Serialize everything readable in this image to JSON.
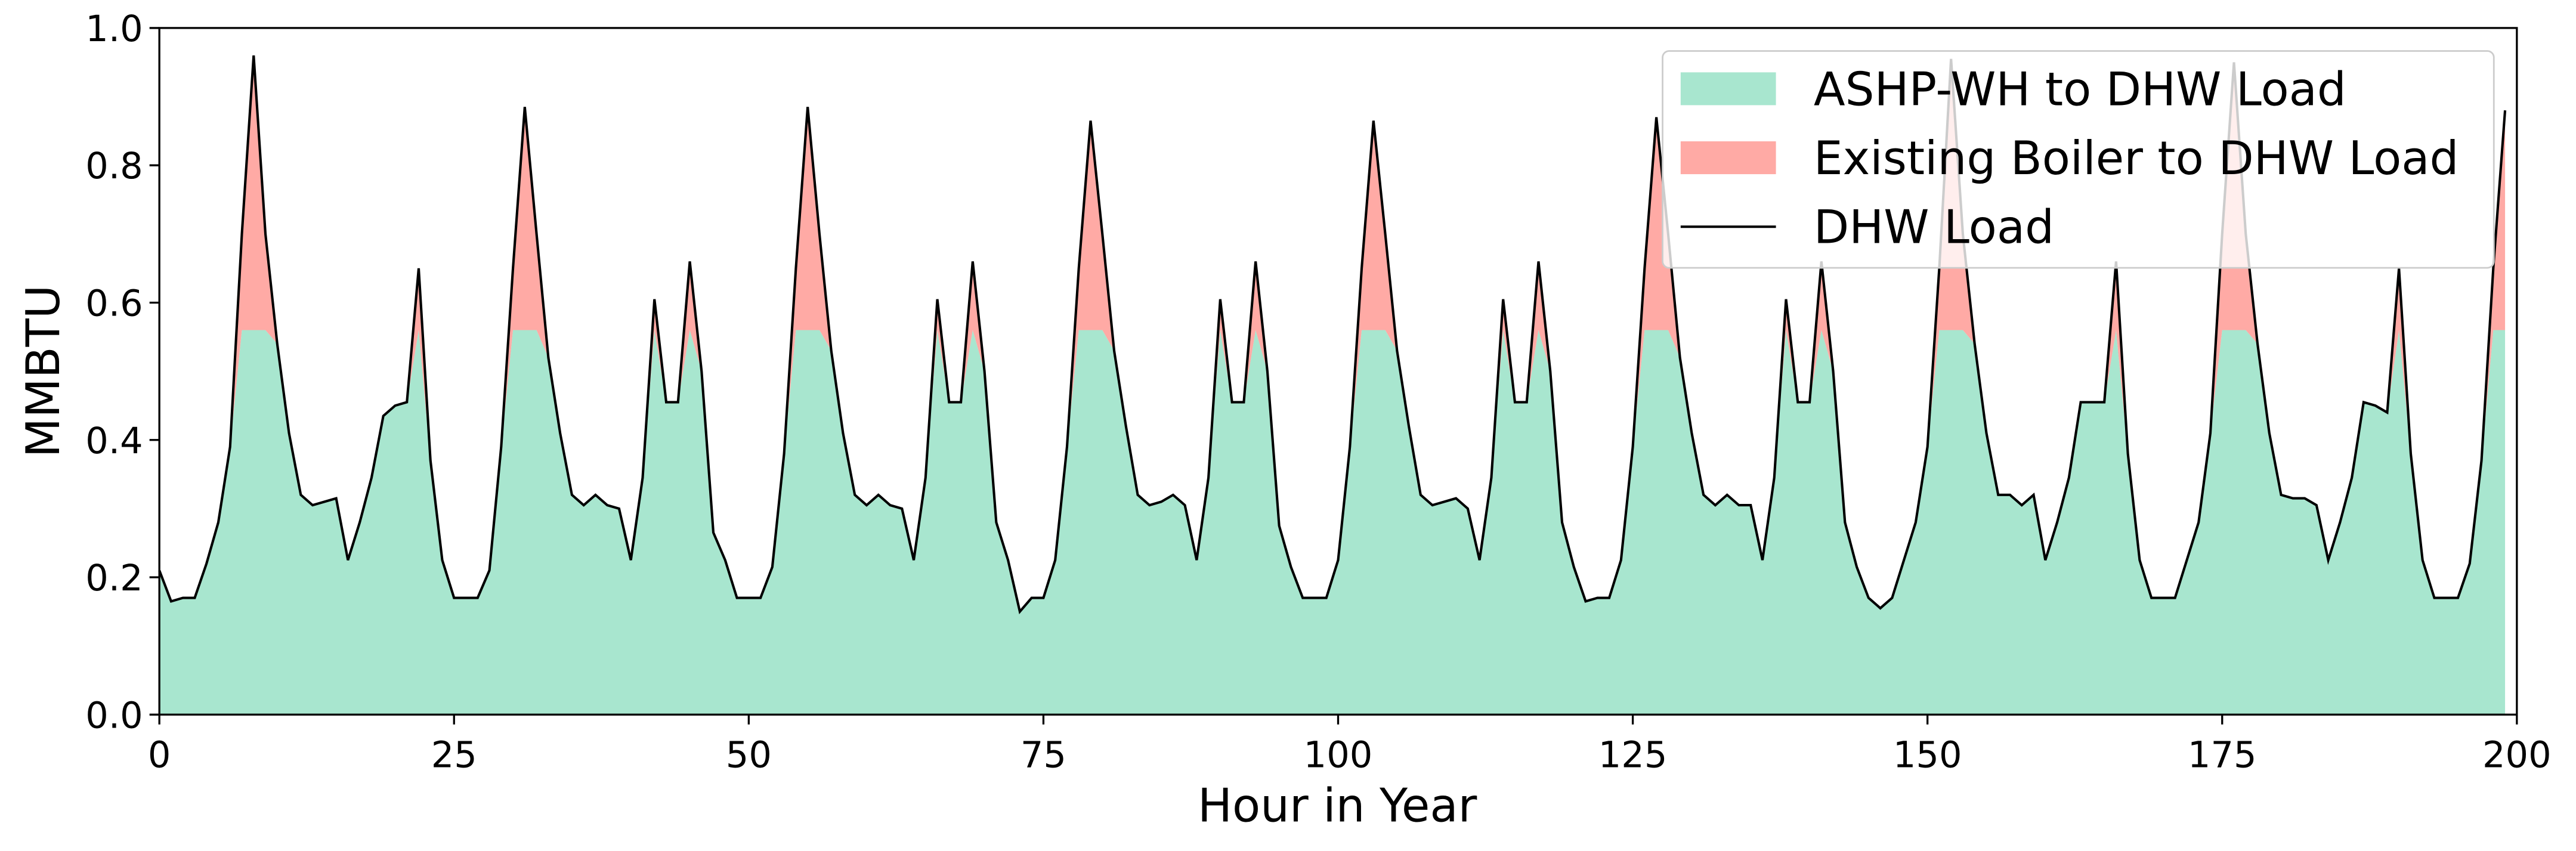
{
  "chart_data": {
    "type": "stacked_area",
    "xlabel": "Hour in Year",
    "ylabel": "MMBTU",
    "x": [
      0,
      1,
      2,
      3,
      4,
      5,
      6,
      7,
      8,
      9,
      10,
      11,
      12,
      13,
      14,
      15,
      16,
      17,
      18,
      19,
      20,
      21,
      22,
      23,
      24,
      25,
      26,
      27,
      28,
      29,
      30,
      31,
      32,
      33,
      34,
      35,
      36,
      37,
      38,
      39,
      40,
      41,
      42,
      43,
      44,
      45,
      46,
      47,
      48,
      49,
      50,
      51,
      52,
      53,
      54,
      55,
      56,
      57,
      58,
      59,
      60,
      61,
      62,
      63,
      64,
      65,
      66,
      67,
      68,
      69,
      70,
      71,
      72,
      73,
      74,
      75,
      76,
      77,
      78,
      79,
      80,
      81,
      82,
      83,
      84,
      85,
      86,
      87,
      88,
      89,
      90,
      91,
      92,
      93,
      94,
      95,
      96,
      97,
      98,
      99,
      100,
      101,
      102,
      103,
      104,
      105,
      106,
      107,
      108,
      109,
      110,
      111,
      112,
      113,
      114,
      115,
      116,
      117,
      118,
      119,
      120,
      121,
      122,
      123,
      124,
      125,
      126,
      127,
      128,
      129,
      130,
      131,
      132,
      133,
      134,
      135,
      136,
      137,
      138,
      139,
      140,
      141,
      142,
      143,
      144,
      145,
      146,
      147,
      148,
      149,
      150,
      151,
      152,
      153,
      154,
      155,
      156,
      157,
      158,
      159,
      160,
      161,
      162,
      163,
      164,
      165,
      166,
      167,
      168,
      169,
      170,
      171,
      172,
      173,
      174,
      175,
      176,
      177,
      178,
      179,
      180,
      181,
      182,
      183,
      184,
      185,
      186,
      187,
      188,
      189,
      190,
      191,
      192,
      193,
      194,
      195,
      196,
      197,
      198,
      199
    ],
    "series": [
      {
        "name": "ASHP-WH to DHW Load",
        "color": "#a8e6cf",
        "kind": "area",
        "values": [
          0.21,
          0.165,
          0.17,
          0.17,
          0.22,
          0.28,
          0.39,
          0.56,
          0.56,
          0.56,
          0.54,
          0.41,
          0.32,
          0.305,
          0.31,
          0.315,
          0.225,
          0.28,
          0.345,
          0.435,
          0.45,
          0.455,
          0.56,
          0.37,
          0.225,
          0.17,
          0.17,
          0.17,
          0.21,
          0.39,
          0.56,
          0.56,
          0.56,
          0.52,
          0.41,
          0.32,
          0.305,
          0.32,
          0.305,
          0.3,
          0.225,
          0.345,
          0.56,
          0.455,
          0.455,
          0.56,
          0.5,
          0.265,
          0.225,
          0.17,
          0.17,
          0.17,
          0.215,
          0.38,
          0.56,
          0.56,
          0.56,
          0.53,
          0.41,
          0.32,
          0.305,
          0.32,
          0.305,
          0.3,
          0.225,
          0.345,
          0.56,
          0.455,
          0.455,
          0.56,
          0.5,
          0.28,
          0.225,
          0.15,
          0.17,
          0.17,
          0.225,
          0.39,
          0.56,
          0.56,
          0.56,
          0.53,
          0.42,
          0.32,
          0.305,
          0.31,
          0.32,
          0.305,
          0.225,
          0.345,
          0.56,
          0.455,
          0.455,
          0.56,
          0.5,
          0.275,
          0.215,
          0.17,
          0.17,
          0.17,
          0.225,
          0.39,
          0.56,
          0.56,
          0.56,
          0.53,
          0.42,
          0.32,
          0.305,
          0.31,
          0.315,
          0.3,
          0.225,
          0.345,
          0.56,
          0.455,
          0.455,
          0.56,
          0.5,
          0.28,
          0.215,
          0.165,
          0.17,
          0.17,
          0.225,
          0.39,
          0.56,
          0.56,
          0.56,
          0.52,
          0.41,
          0.32,
          0.305,
          0.32,
          0.305,
          0.305,
          0.225,
          0.345,
          0.56,
          0.455,
          0.455,
          0.56,
          0.5,
          0.28,
          0.215,
          0.17,
          0.155,
          0.17,
          0.225,
          0.28,
          0.39,
          0.56,
          0.56,
          0.56,
          0.54,
          0.41,
          0.32,
          0.32,
          0.305,
          0.32,
          0.225,
          0.28,
          0.345,
          0.455,
          0.455,
          0.455,
          0.56,
          0.38,
          0.225,
          0.17,
          0.17,
          0.17,
          0.225,
          0.28,
          0.41,
          0.56,
          0.56,
          0.56,
          0.54,
          0.41,
          0.32,
          0.315,
          0.315,
          0.305,
          0.225,
          0.28,
          0.345,
          0.455,
          0.45,
          0.44,
          0.56,
          0.38,
          0.225,
          0.17,
          0.17,
          0.17,
          0.22,
          0.37,
          0.56,
          0.56
        ]
      },
      {
        "name": "Existing Boiler to DHW Load",
        "color": "#ffaaa5",
        "kind": "area",
        "values": [
          0,
          0,
          0,
          0,
          0,
          0,
          0,
          0.14,
          0.4,
          0.14,
          0,
          0,
          0,
          0,
          0,
          0,
          0,
          0,
          0,
          0,
          0,
          0,
          0.09,
          0,
          0,
          0,
          0,
          0,
          0,
          0,
          0.09,
          0.325,
          0.14,
          0,
          0,
          0,
          0,
          0,
          0,
          0,
          0,
          0,
          0.045,
          0,
          0,
          0.1,
          0,
          0,
          0,
          0,
          0,
          0,
          0,
          0,
          0.09,
          0.325,
          0.14,
          0,
          0,
          0,
          0,
          0,
          0,
          0,
          0,
          0,
          0.045,
          0,
          0,
          0.1,
          0,
          0,
          0,
          0,
          0,
          0,
          0,
          0,
          0.09,
          0.305,
          0.14,
          0,
          0,
          0,
          0,
          0,
          0,
          0,
          0,
          0,
          0.045,
          0,
          0,
          0.1,
          0,
          0,
          0,
          0,
          0,
          0,
          0,
          0,
          0.09,
          0.305,
          0.14,
          0,
          0,
          0,
          0,
          0,
          0,
          0,
          0,
          0,
          0.045,
          0,
          0,
          0.1,
          0,
          0,
          0,
          0,
          0,
          0,
          0,
          0,
          0.09,
          0.31,
          0.14,
          0,
          0,
          0,
          0,
          0,
          0,
          0,
          0,
          0,
          0.045,
          0,
          0,
          0.1,
          0,
          0,
          0,
          0,
          0,
          0,
          0,
          0,
          0,
          0.09,
          0.395,
          0.14,
          0,
          0,
          0,
          0,
          0,
          0,
          0,
          0,
          0,
          0,
          0,
          0,
          0.1,
          0,
          0,
          0,
          0,
          0,
          0,
          0,
          0,
          0.14,
          0.39,
          0.14,
          0,
          0,
          0,
          0,
          0,
          0,
          0,
          0,
          0,
          0,
          0,
          0,
          0.09,
          0,
          0,
          0,
          0,
          0,
          0,
          0,
          0.09,
          0.32
        ]
      },
      {
        "name": "DHW Load",
        "color": "#000000",
        "kind": "line",
        "values": [
          0.21,
          0.165,
          0.17,
          0.17,
          0.22,
          0.28,
          0.39,
          0.7,
          0.96,
          0.7,
          0.54,
          0.41,
          0.32,
          0.305,
          0.31,
          0.315,
          0.225,
          0.28,
          0.345,
          0.435,
          0.45,
          0.455,
          0.65,
          0.37,
          0.225,
          0.17,
          0.17,
          0.17,
          0.21,
          0.39,
          0.65,
          0.885,
          0.7,
          0.52,
          0.41,
          0.32,
          0.305,
          0.32,
          0.305,
          0.3,
          0.225,
          0.345,
          0.605,
          0.455,
          0.455,
          0.66,
          0.5,
          0.265,
          0.225,
          0.17,
          0.17,
          0.17,
          0.215,
          0.38,
          0.65,
          0.885,
          0.7,
          0.53,
          0.41,
          0.32,
          0.305,
          0.32,
          0.305,
          0.3,
          0.225,
          0.345,
          0.605,
          0.455,
          0.455,
          0.66,
          0.5,
          0.28,
          0.225,
          0.15,
          0.17,
          0.17,
          0.225,
          0.39,
          0.65,
          0.865,
          0.7,
          0.53,
          0.42,
          0.32,
          0.305,
          0.31,
          0.32,
          0.305,
          0.225,
          0.345,
          0.605,
          0.455,
          0.455,
          0.66,
          0.5,
          0.275,
          0.215,
          0.17,
          0.17,
          0.17,
          0.225,
          0.39,
          0.65,
          0.865,
          0.7,
          0.53,
          0.42,
          0.32,
          0.305,
          0.31,
          0.315,
          0.3,
          0.225,
          0.345,
          0.605,
          0.455,
          0.455,
          0.66,
          0.5,
          0.28,
          0.215,
          0.165,
          0.17,
          0.17,
          0.225,
          0.39,
          0.65,
          0.87,
          0.7,
          0.52,
          0.41,
          0.32,
          0.305,
          0.32,
          0.305,
          0.305,
          0.225,
          0.345,
          0.605,
          0.455,
          0.455,
          0.66,
          0.5,
          0.28,
          0.215,
          0.17,
          0.155,
          0.17,
          0.225,
          0.28,
          0.39,
          0.65,
          0.955,
          0.7,
          0.54,
          0.41,
          0.32,
          0.32,
          0.305,
          0.32,
          0.225,
          0.28,
          0.345,
          0.455,
          0.455,
          0.455,
          0.66,
          0.38,
          0.225,
          0.17,
          0.17,
          0.17,
          0.225,
          0.28,
          0.41,
          0.7,
          0.95,
          0.7,
          0.54,
          0.41,
          0.32,
          0.315,
          0.315,
          0.305,
          0.225,
          0.28,
          0.345,
          0.455,
          0.45,
          0.44,
          0.65,
          0.38,
          0.225,
          0.17,
          0.17,
          0.17,
          0.22,
          0.37,
          0.65,
          0.88
        ]
      }
    ],
    "xlim": [
      0,
      200
    ],
    "xticks": [
      0,
      25,
      50,
      75,
      100,
      125,
      150,
      175,
      200
    ],
    "ylim": [
      0,
      1.0
    ],
    "yticks": [
      {
        "value": 0,
        "label": "0.0"
      },
      0.2,
      0.4,
      0.6,
      0.8,
      {
        "value": 1,
        "label": "1.0"
      }
    ],
    "grid": false,
    "legend": "upper right"
  }
}
